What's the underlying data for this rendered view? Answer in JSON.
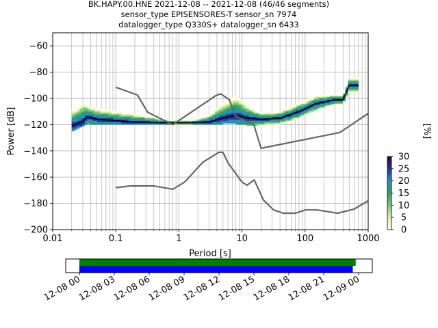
{
  "chart_data": [
    {
      "type": "heatmap",
      "title_lines": [
        "BK.HAPY.00.HNE   2021-12-08 -- 2021-12-08  (46/46 segments)",
        "sensor_type EPISENSORES-T sensor_sn 7974",
        "datalogger_type Q330S+ datalogger_sn 6433"
      ],
      "xlabel": "Period [s]",
      "ylabel": "Power [dB]",
      "x_scale": "log",
      "xlim": [
        0.01,
        1000
      ],
      "ylim": [
        -200,
        -50
      ],
      "x_ticks": [
        0.01,
        0.1,
        1,
        10,
        100,
        1000
      ],
      "x_tick_labels": [
        "0.01",
        "0.1",
        "1",
        "10",
        "100",
        "1000"
      ],
      "y_ticks": [
        -200,
        -180,
        -160,
        -140,
        -120,
        -100,
        -80,
        -60
      ],
      "y_tick_labels": [
        "−200",
        "−180",
        "−160",
        "−140",
        "−120",
        "−100",
        "−80",
        "−60"
      ],
      "grid": true,
      "colorbar": {
        "label": "[%]",
        "min": 0,
        "max": 30,
        "ticks": [
          0,
          5,
          10,
          15,
          20,
          25,
          30
        ],
        "tick_labels": [
          "0",
          "5",
          "10",
          "15",
          "20",
          "25",
          "30"
        ],
        "colors": [
          "#ffffe5",
          "#d9f0a3",
          "#78c679",
          "#2ca25f",
          "#1d91c0",
          "#253494",
          "#2d004b"
        ]
      },
      "series": [
        {
          "role": "mode",
          "color": "#000000",
          "x": [
            0.02,
            0.025,
            0.03,
            0.035,
            0.05,
            0.1,
            0.2,
            0.5,
            0.8,
            1.5,
            3,
            5,
            8,
            12,
            20,
            40,
            80,
            150,
            300,
            400,
            500,
            700
          ],
          "y": [
            -121,
            -119,
            -118,
            -114,
            -116,
            -117,
            -118,
            -118.5,
            -118.5,
            -118.5,
            -118,
            -115,
            -113,
            -115,
            -116,
            -115,
            -110,
            -104,
            -101,
            -101,
            -90,
            -90
          ]
        },
        {
          "role": "new-high-noise-model",
          "color": "#666666",
          "x": [
            0.1,
            0.22,
            0.32,
            0.8,
            3.8,
            4.6,
            6.3,
            7.9,
            15.4,
            20,
            354.8,
            1000
          ],
          "y": [
            -91.5,
            -97.4,
            -110.5,
            -120,
            -98,
            -96.5,
            -101,
            -113.5,
            -120,
            -138,
            -126,
            -111.5
          ]
        },
        {
          "role": "new-low-noise-model",
          "color": "#666666",
          "x": [
            0.1,
            0.17,
            0.4,
            0.8,
            1.24,
            2.4,
            4.3,
            5,
            6,
            10,
            12,
            15.6,
            21.9,
            31.6,
            45,
            70,
            101,
            154,
            328,
            600,
            1000
          ],
          "y": [
            -168,
            -166.7,
            -166.7,
            -169.2,
            -163.7,
            -148.6,
            -141.1,
            -141.1,
            -149,
            -163.8,
            -166.2,
            -162.1,
            -177.5,
            -185,
            -187.5,
            -187.5,
            -185,
            -185,
            -187.5,
            -184.4,
            -178
          ]
        }
      ],
      "density_band": {
        "x": [
          0.02,
          0.025,
          0.03,
          0.035,
          0.05,
          0.1,
          0.2,
          0.5,
          0.8,
          1.5,
          3,
          5,
          8,
          12,
          20,
          40,
          80,
          150,
          300,
          400,
          500,
          700
        ],
        "y_low": [
          -125,
          -123,
          -121,
          -119,
          -120,
          -120,
          -120,
          -120,
          -120,
          -120,
          -120,
          -119,
          -119,
          -120,
          -121,
          -119,
          -114,
          -108,
          -104,
          -104,
          -95,
          -95
        ],
        "y_high": [
          -109,
          -107,
          -103,
          -105,
          -108,
          -110,
          -112,
          -115,
          -117,
          -117,
          -113,
          -104,
          -98,
          -105,
          -111,
          -110,
          -104,
          -98,
          -97,
          -97,
          -84,
          -84
        ]
      }
    },
    {
      "type": "timeline",
      "x_tick_labels": [
        "12-08 00",
        "12-08 03",
        "12-08 06",
        "12-08 09",
        "12-08 12",
        "12-08 15",
        "12-08 18",
        "12-08 21",
        "12-09 00"
      ],
      "bars": [
        {
          "color": "#008000",
          "start_hour": 0,
          "end_hour": 23.75
        },
        {
          "color": "#0000ff",
          "start_hour": 0,
          "end_hour": 23.5
        }
      ]
    }
  ]
}
